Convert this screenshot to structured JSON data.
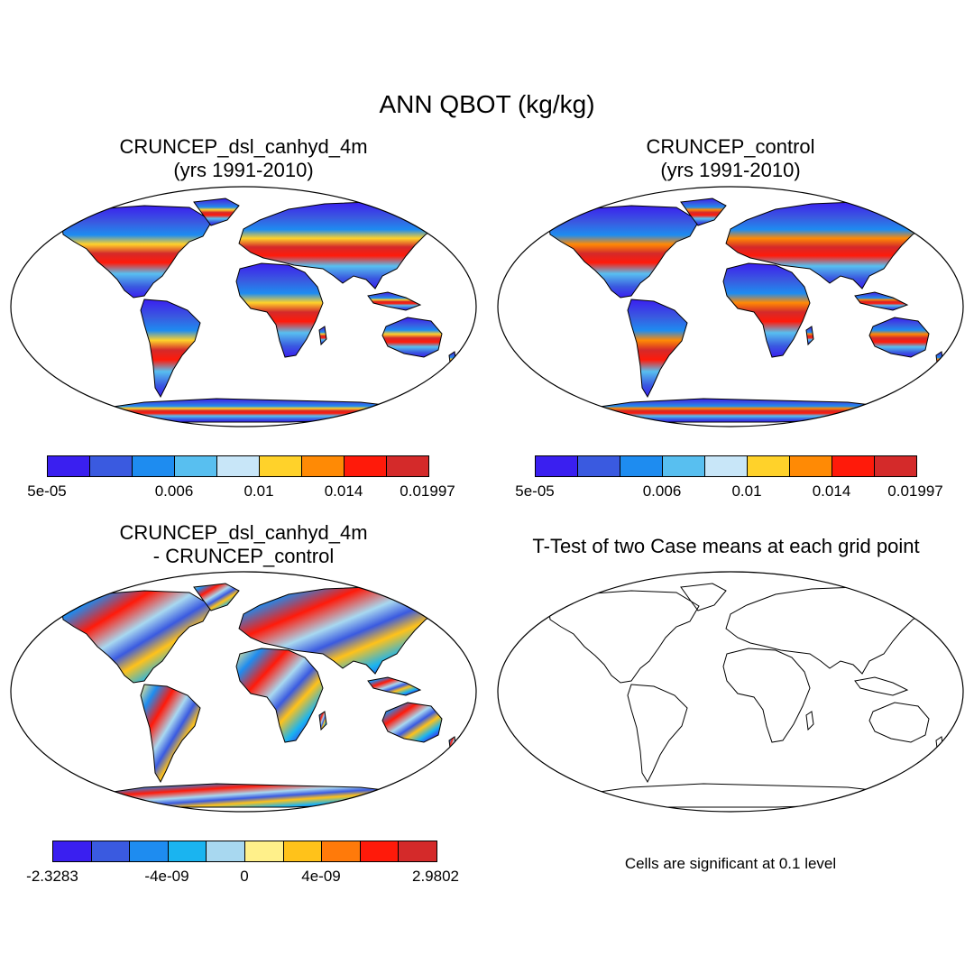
{
  "figure": {
    "title": "ANN QBOT (kg/kg)"
  },
  "panels": {
    "case": {
      "title_line1": "CRUNCEP_dsl_canhyd_4m",
      "title_line2": "(yrs 1991-2010)",
      "colorbar": {
        "colors": [
          "#3a1ff0",
          "#3a5ae0",
          "#1e8cf0",
          "#58bff0",
          "#c8e6f8",
          "#ffd22a",
          "#ff8a05",
          "#ff1a0a",
          "#d42a2a"
        ],
        "labels": [
          "5e-05",
          "0.006",
          "0.01",
          "0.014",
          "0.01997"
        ]
      }
    },
    "control": {
      "title_line1": "CRUNCEP_control",
      "title_line2": "(yrs 1991-2010)",
      "colorbar": {
        "colors": [
          "#3a1ff0",
          "#3a5ae0",
          "#1e8cf0",
          "#58bff0",
          "#c8e6f8",
          "#ffd22a",
          "#ff8a05",
          "#ff1a0a",
          "#d42a2a"
        ],
        "labels": [
          "5e-05",
          "0.006",
          "0.01",
          "0.014",
          "0.01997"
        ]
      }
    },
    "difference": {
      "title_line1": "CRUNCEP_dsl_canhyd_4m",
      "title_line2": "- CRUNCEP_control",
      "colorbar": {
        "colors": [
          "#3a1ff0",
          "#3a5ae0",
          "#1e8cf0",
          "#1ab4f0",
          "#a8d8f0",
          "#fff08a",
          "#ffc21a",
          "#ff7a0a",
          "#ff1a0a",
          "#d42a2a"
        ],
        "labels": [
          "-2.3283",
          "-4e-09",
          "0",
          "4e-09",
          "2.9802"
        ]
      }
    },
    "ttest": {
      "title": "T-Test of two Case means at each grid point",
      "note": "Cells are significant at 0.1 level"
    }
  }
}
